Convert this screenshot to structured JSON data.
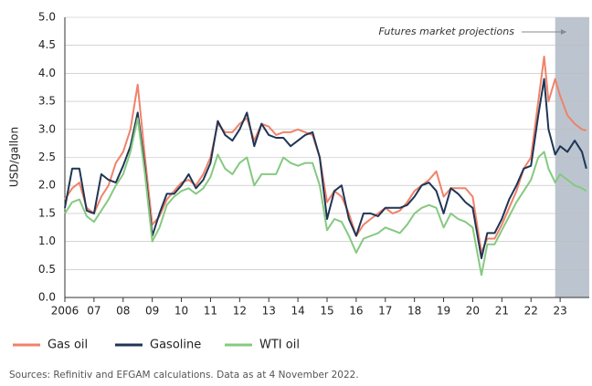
{
  "chart_data": {
    "type": "line",
    "y_label": "USD/gallon",
    "annotation": "Futures market projections",
    "source": "Sources: Refinitiv and EFGAM calculations. Data as at 4 November 2022.",
    "shaded_xrange": [
      2022.83,
      2024
    ],
    "x": [
      2006,
      2006.25,
      2006.5,
      2006.75,
      2007,
      2007.25,
      2007.5,
      2007.75,
      2008,
      2008.25,
      2008.5,
      2008.75,
      2009,
      2009.25,
      2009.5,
      2009.75,
      2010,
      2010.25,
      2010.5,
      2010.75,
      2011,
      2011.25,
      2011.5,
      2011.75,
      2012,
      2012.25,
      2012.5,
      2012.75,
      2013,
      2013.25,
      2013.5,
      2013.75,
      2014,
      2014.25,
      2014.5,
      2014.75,
      2015,
      2015.25,
      2015.5,
      2015.75,
      2016,
      2016.25,
      2016.5,
      2016.75,
      2017,
      2017.25,
      2017.5,
      2017.75,
      2018,
      2018.25,
      2018.5,
      2018.75,
      2019,
      2019.25,
      2019.5,
      2019.75,
      2020,
      2020.3,
      2020.5,
      2020.75,
      2021,
      2021.25,
      2021.5,
      2021.75,
      2022,
      2022.25,
      2022.45,
      2022.6,
      2022.83,
      2023,
      2023.25,
      2023.5,
      2023.75,
      2023.9
    ],
    "series": [
      {
        "name": "Gas oil",
        "color": "#f0826a",
        "values": [
          1.75,
          1.95,
          2.05,
          1.6,
          1.5,
          1.8,
          2.0,
          2.4,
          2.6,
          3.0,
          3.8,
          2.5,
          1.3,
          1.45,
          1.75,
          1.9,
          2.05,
          2.1,
          2.0,
          2.2,
          2.5,
          3.1,
          2.95,
          2.95,
          3.1,
          3.2,
          2.8,
          3.1,
          3.05,
          2.9,
          2.95,
          2.95,
          3.0,
          2.95,
          2.9,
          2.5,
          1.7,
          1.9,
          1.8,
          1.5,
          1.1,
          1.3,
          1.4,
          1.5,
          1.6,
          1.5,
          1.55,
          1.7,
          1.9,
          2.0,
          2.1,
          2.25,
          1.8,
          1.95,
          1.95,
          1.95,
          1.8,
          0.8,
          1.05,
          1.05,
          1.3,
          1.6,
          1.9,
          2.3,
          2.5,
          3.5,
          4.3,
          3.5,
          3.9,
          3.6,
          3.25,
          3.1,
          3.0,
          2.98
        ]
      },
      {
        "name": "Gasoline",
        "color": "#1f3556",
        "values": [
          1.6,
          2.3,
          2.3,
          1.55,
          1.5,
          2.2,
          2.1,
          2.05,
          2.35,
          2.7,
          3.3,
          2.3,
          1.1,
          1.5,
          1.85,
          1.85,
          2.0,
          2.2,
          1.95,
          2.1,
          2.4,
          3.15,
          2.9,
          2.8,
          3.0,
          3.3,
          2.7,
          3.1,
          2.9,
          2.85,
          2.85,
          2.7,
          2.8,
          2.9,
          2.95,
          2.5,
          1.4,
          1.9,
          2.0,
          1.4,
          1.1,
          1.5,
          1.5,
          1.45,
          1.6,
          1.6,
          1.6,
          1.65,
          1.8,
          2.0,
          2.05,
          1.9,
          1.5,
          1.95,
          1.85,
          1.7,
          1.6,
          0.7,
          1.15,
          1.15,
          1.4,
          1.75,
          2.0,
          2.3,
          2.35,
          3.25,
          3.9,
          3.0,
          2.55,
          2.7,
          2.6,
          2.8,
          2.6,
          2.3
        ]
      },
      {
        "name": "WTI oil",
        "color": "#86c980",
        "values": [
          1.5,
          1.7,
          1.75,
          1.45,
          1.35,
          1.55,
          1.75,
          2.0,
          2.2,
          2.6,
          3.2,
          2.2,
          1.0,
          1.25,
          1.65,
          1.8,
          1.9,
          1.95,
          1.85,
          1.95,
          2.15,
          2.55,
          2.3,
          2.2,
          2.4,
          2.5,
          2.0,
          2.2,
          2.2,
          2.2,
          2.5,
          2.4,
          2.35,
          2.4,
          2.4,
          2.0,
          1.2,
          1.4,
          1.35,
          1.1,
          0.8,
          1.05,
          1.1,
          1.15,
          1.25,
          1.2,
          1.15,
          1.3,
          1.5,
          1.6,
          1.65,
          1.6,
          1.25,
          1.5,
          1.4,
          1.35,
          1.25,
          0.4,
          0.95,
          0.95,
          1.2,
          1.45,
          1.7,
          1.9,
          2.1,
          2.5,
          2.6,
          2.3,
          2.05,
          2.2,
          2.1,
          2.0,
          1.95,
          1.9
        ]
      }
    ],
    "xlim": [
      2006,
      2024
    ],
    "xticks": [
      2006,
      {
        "value": 2007,
        "label": "07"
      },
      {
        "value": 2008,
        "label": "08"
      },
      {
        "value": 2009,
        "label": "09"
      },
      {
        "value": 2010,
        "label": "10"
      },
      {
        "value": 2011,
        "label": "11"
      },
      {
        "value": 2012,
        "label": "12"
      },
      {
        "value": 2013,
        "label": "13"
      },
      {
        "value": 2014,
        "label": "14"
      },
      {
        "value": 2015,
        "label": "15"
      },
      {
        "value": 2016,
        "label": "16"
      },
      {
        "value": 2017,
        "label": "17"
      },
      {
        "value": 2018,
        "label": "18"
      },
      {
        "value": 2019,
        "label": "19"
      },
      {
        "value": 2020,
        "label": "20"
      },
      {
        "value": 2021,
        "label": "21"
      },
      {
        "value": 2022,
        "label": "22"
      },
      {
        "value": 2023,
        "label": "23"
      }
    ],
    "ylim": [
      0,
      5
    ],
    "yticks": [
      {
        "value": 0,
        "label": "0.0"
      },
      {
        "value": 0.5,
        "label": "0.5"
      },
      {
        "value": 1,
        "label": "1.0"
      },
      {
        "value": 1.5,
        "label": "1.5"
      },
      {
        "value": 2,
        "label": "2.0"
      },
      {
        "value": 2.5,
        "label": "2.5"
      },
      {
        "value": 3,
        "label": "3.0"
      },
      {
        "value": 3.5,
        "label": "3.5"
      },
      {
        "value": 4,
        "label": "4.0"
      },
      {
        "value": 4.5,
        "label": "4.5"
      },
      {
        "value": 5,
        "label": "5.0"
      }
    ],
    "grid": true,
    "legend": "bottom-left"
  }
}
